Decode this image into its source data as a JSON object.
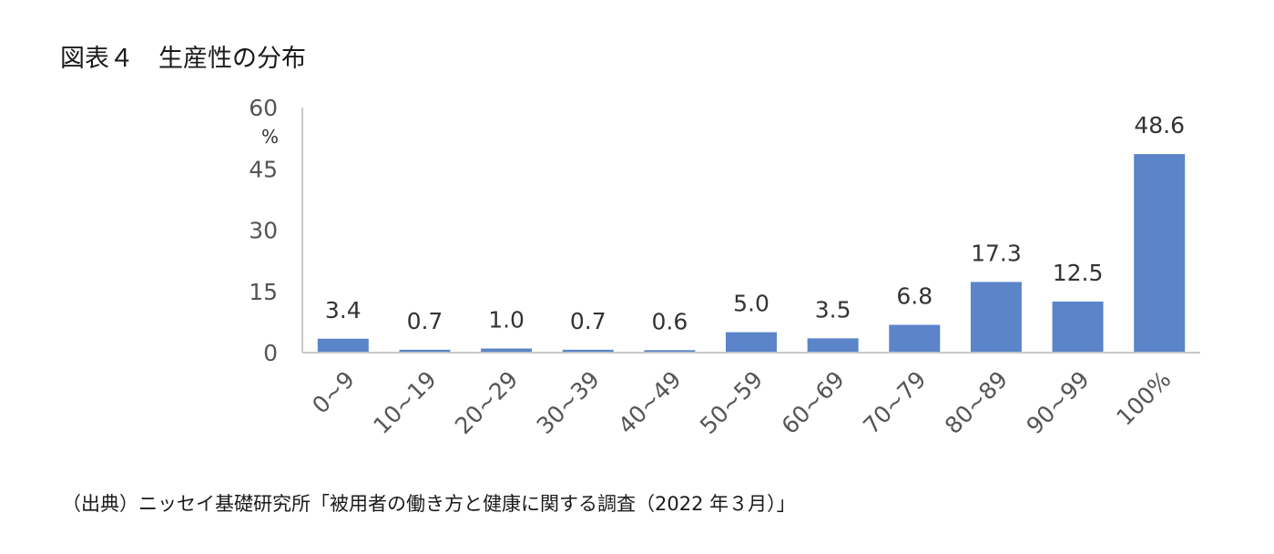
{
  "title": "図表４　生産性の分布",
  "source": "（出典）ニッセイ基礎研究所「被用者の働き方と健康に関する調査（2022 年３月）」",
  "chart_data": {
    "type": "bar",
    "title": "図表４　生産性の分布",
    "xlabel": "",
    "ylabel": "%",
    "categories": [
      "0~9",
      "10~19",
      "20~29",
      "30~39",
      "40~49",
      "50~59",
      "60~69",
      "70~79",
      "80~89",
      "90~99",
      "100%"
    ],
    "values": [
      3.4,
      0.7,
      1.0,
      0.7,
      0.6,
      5.0,
      3.5,
      6.8,
      17.3,
      12.5,
      48.6
    ],
    "data_labels": [
      "3.4",
      "0.7",
      "1.0",
      "0.7",
      "0.6",
      "5.0",
      "3.5",
      "6.8",
      "17.3",
      "12.5",
      "48.6"
    ],
    "ylim": [
      0,
      60
    ],
    "yticks": [
      0,
      15,
      30,
      45,
      60
    ],
    "bar_color": "#5b84c9",
    "grid": false,
    "legend": "none"
  }
}
